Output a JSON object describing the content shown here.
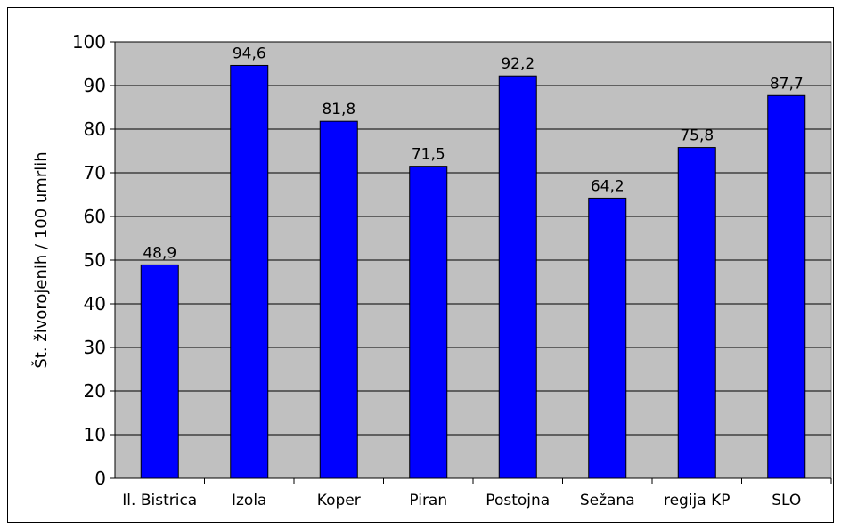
{
  "chart_data": {
    "type": "bar",
    "categories": [
      "Il. Bistrica",
      "Izola",
      "Koper",
      "Piran",
      "Postojna",
      "Sežana",
      "regija KP",
      "SLO"
    ],
    "values": [
      48.9,
      94.6,
      81.8,
      71.5,
      92.2,
      64.2,
      75.8,
      87.7
    ],
    "data_labels": [
      "48,9",
      "94,6",
      "81,8",
      "71,5",
      "92,2",
      "64,2",
      "75,8",
      "87,7"
    ],
    "title": "",
    "xlabel": "",
    "ylabel": "Št. živorojenih / 100 umrlih",
    "ylim": [
      0,
      100
    ],
    "yticks": [
      "0",
      "10",
      "20",
      "30",
      "40",
      "50",
      "60",
      "70",
      "80",
      "90",
      "100"
    ],
    "grid": true,
    "legend": "none",
    "colors": {
      "bar": "#0000FF",
      "bar_edge": "#000000",
      "plot_bg": "#C0C0C0",
      "grid": "#000000"
    }
  }
}
